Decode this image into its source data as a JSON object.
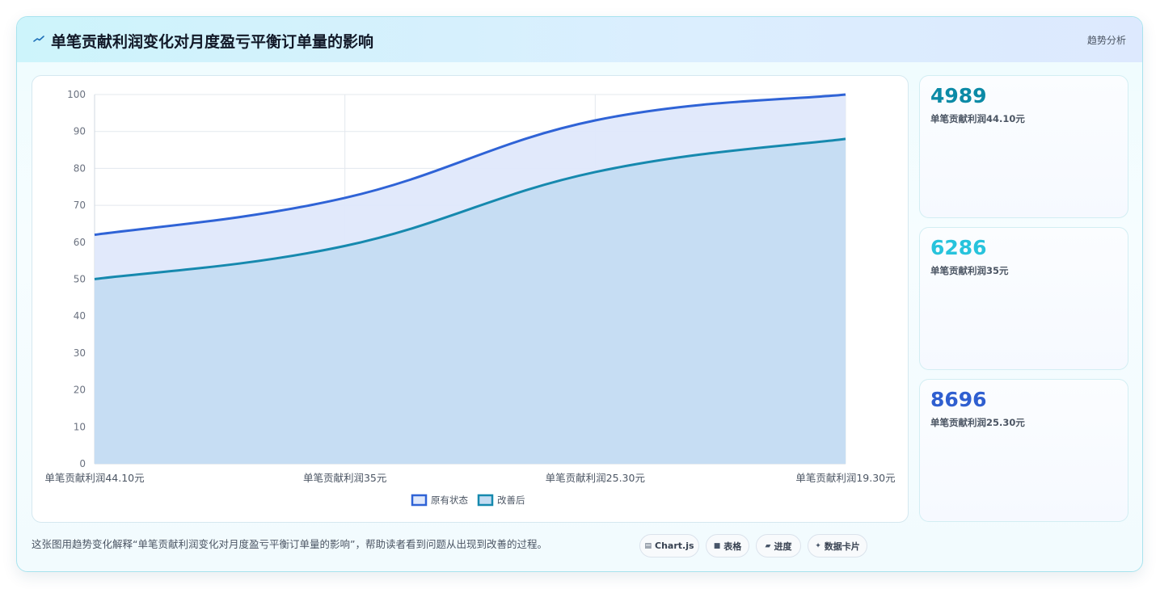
{
  "header": {
    "title": "单笔贡献利润变化对月度盈亏平衡订单量的影响",
    "right_label": "趋势分析",
    "icon": "trend-line-icon"
  },
  "chart_data": {
    "type": "area",
    "categories": [
      "单笔贡献利润44.10元",
      "单笔贡献利润35元",
      "单笔贡献利润25.30元",
      "单笔贡献利润19.30元"
    ],
    "series": [
      {
        "name": "原有状态",
        "values": [
          62,
          72,
          93,
          100
        ],
        "color": "#2f63d6",
        "fill": "#dfe8fb"
      },
      {
        "name": "改善后",
        "values": [
          50,
          59,
          79,
          88
        ],
        "color": "#1689ae",
        "fill": "#c4dcf2"
      }
    ],
    "yticks": [
      0,
      10,
      20,
      30,
      40,
      50,
      60,
      70,
      80,
      90,
      100
    ],
    "ylim": [
      0,
      100
    ],
    "grid": true,
    "legend": "bottom"
  },
  "stats": [
    {
      "value": "4989",
      "label": "单笔贡献利润44.10元",
      "color": "#0b8aa6"
    },
    {
      "value": "6286",
      "label": "单笔贡献利润35元",
      "color": "#27c3dc"
    },
    {
      "value": "8696",
      "label": "单笔贡献利润25.30元",
      "color": "#2f5fd0"
    }
  ],
  "caption": "这张图用趋势变化解释“单笔贡献利润变化对月度盈亏平衡订单量的影响”，帮助读者看到问题从出现到改善的过程。",
  "tags": [
    {
      "icon": "chart-icon",
      "glyph": "▤",
      "label": "Chart.js"
    },
    {
      "icon": "table-icon",
      "glyph": "■",
      "label": "表格"
    },
    {
      "icon": "progress-icon",
      "glyph": "▰",
      "label": "进度"
    },
    {
      "icon": "sparkle-icon",
      "glyph": "✦",
      "label": "数据卡片"
    }
  ]
}
